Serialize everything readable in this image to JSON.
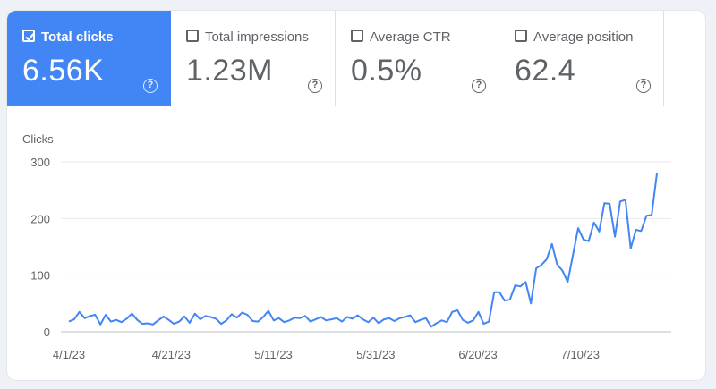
{
  "metrics": [
    {
      "label": "Total clicks",
      "value": "6.56K",
      "selected": true
    },
    {
      "label": "Total impressions",
      "value": "1.23M",
      "selected": false
    },
    {
      "label": "Average CTR",
      "value": "0.5%",
      "selected": false
    },
    {
      "label": "Average position",
      "value": "62.4",
      "selected": false
    }
  ],
  "help_glyph": "?",
  "colors": {
    "accent": "#4285f4",
    "line": "#4285f4",
    "grid": "#e8eaed"
  },
  "chart_data": {
    "type": "line",
    "ylabel": "Clicks",
    "ylim": [
      0,
      300
    ],
    "yticks": [
      "300",
      "200",
      "100",
      "0"
    ],
    "xticks": [
      "4/1/23",
      "4/21/23",
      "5/11/23",
      "5/31/23",
      "6/20/23",
      "7/10/23"
    ],
    "x_start": "4/1/23",
    "x_end": "7/25/23",
    "series": [
      {
        "values": [
          18,
          22,
          35,
          24,
          28,
          30,
          13,
          30,
          18,
          21,
          17,
          23,
          32,
          21,
          14,
          15,
          13,
          20,
          27,
          21,
          14,
          18,
          27,
          16,
          32,
          22,
          28,
          26,
          23,
          14,
          20,
          31,
          25,
          34,
          30,
          19,
          18,
          26,
          37,
          20,
          24,
          17,
          20,
          25,
          24,
          28,
          18,
          22,
          26,
          20,
          22,
          24,
          18,
          26,
          23,
          29,
          22,
          17,
          25,
          15,
          22,
          24,
          19,
          24,
          26,
          29,
          17,
          21,
          24,
          9,
          15,
          20,
          17,
          35,
          38,
          21,
          16,
          20,
          35,
          14,
          18,
          70,
          70,
          55,
          57,
          82,
          80,
          88,
          50,
          112,
          118,
          128,
          155,
          119,
          108,
          88,
          135,
          183,
          163,
          160,
          193,
          177,
          227,
          226,
          168,
          230,
          233,
          147,
          180,
          178,
          205,
          206,
          280
        ]
      }
    ]
  }
}
